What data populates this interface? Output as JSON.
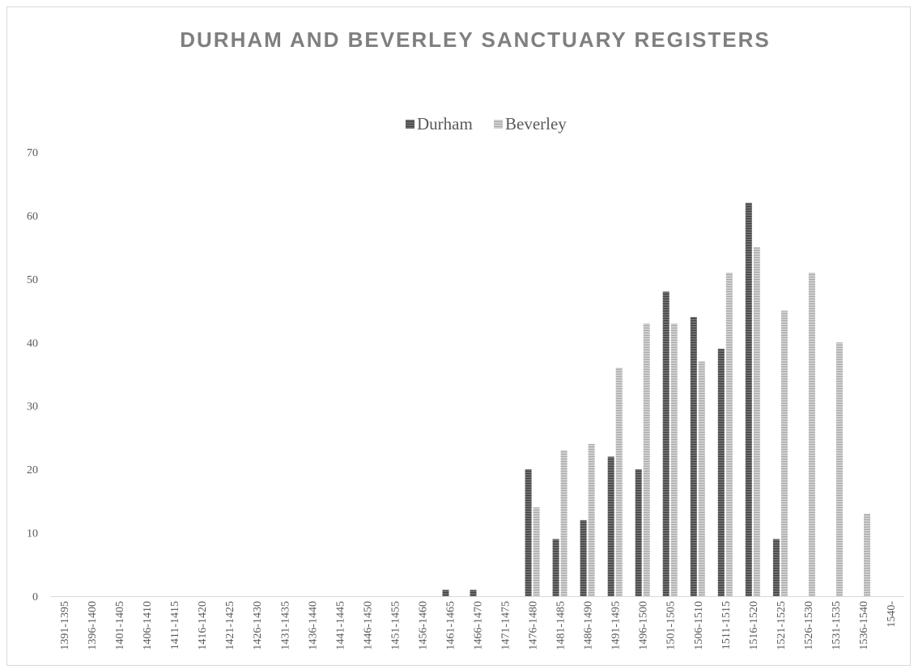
{
  "chart_data": {
    "type": "bar",
    "title": "DURHAM AND BEVERLEY SANCTUARY REGISTERS",
    "xlabel": "",
    "ylabel": "",
    "ylim": [
      0,
      70
    ],
    "yticks": [
      0,
      10,
      20,
      30,
      40,
      50,
      60,
      70
    ],
    "grid": false,
    "legend": "top-center",
    "categories": [
      "1391-1395",
      "1396-1400",
      "1401-1405",
      "1406-1410",
      "1411-1415",
      "1416-1420",
      "1421-1425",
      "1426-1430",
      "1431-1435",
      "1436-1440",
      "1441-1445",
      "1446-1450",
      "1451-1455",
      "1456-1460",
      "1461-1465",
      "1466-1470",
      "1471-1475",
      "1476-1480",
      "1481-1485",
      "1486-1490",
      "1491-1495",
      "1496-1500",
      "1501-1505",
      "1506-1510",
      "1511-1515",
      "1516-1520",
      "1521-1525",
      "1526-1530",
      "1531-1535",
      "1536-1540",
      "1540-"
    ],
    "series": [
      {
        "name": "Durham",
        "color": "#595959",
        "values": [
          0,
          0,
          0,
          0,
          0,
          0,
          0,
          0,
          0,
          0,
          0,
          0,
          0,
          0,
          1,
          1,
          0,
          20,
          9,
          12,
          22,
          20,
          48,
          44,
          39,
          62,
          9,
          0,
          0,
          0,
          0
        ]
      },
      {
        "name": "Beverley",
        "color": "#bfbfbf",
        "values": [
          0,
          0,
          0,
          0,
          0,
          0,
          0,
          0,
          0,
          0,
          0,
          0,
          0,
          0,
          0,
          0,
          0,
          14,
          23,
          24,
          36,
          43,
          43,
          37,
          51,
          55,
          45,
          51,
          40,
          13,
          0
        ]
      }
    ]
  }
}
